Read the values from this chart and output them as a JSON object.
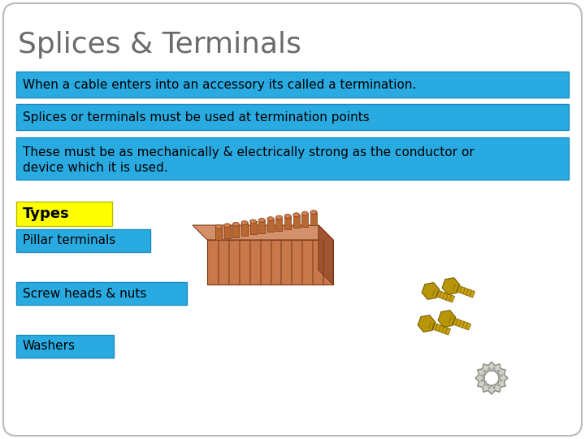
{
  "title": "Splices & Terminals",
  "title_color": "#6b6b6b",
  "background_color": "#ffffff",
  "slide_border_color": "#bbbbbb",
  "cyan_color": "#29abe2",
  "yellow_color": "#ffff00",
  "text_color": "#000000",
  "box1_text": "When a cable enters into an accessory its called a termination.",
  "box2_text": "Splices or terminals must be used at termination points",
  "box3_line1": "These must be as mechanically & electrically strong as the conductor or",
  "box3_line2": "device which it is used.",
  "types_label": "Types",
  "label1": "Pillar terminals",
  "label2": "Screw heads & nuts",
  "label3": "Washers",
  "figw": 7.2,
  "figh": 5.4,
  "dpi": 100
}
